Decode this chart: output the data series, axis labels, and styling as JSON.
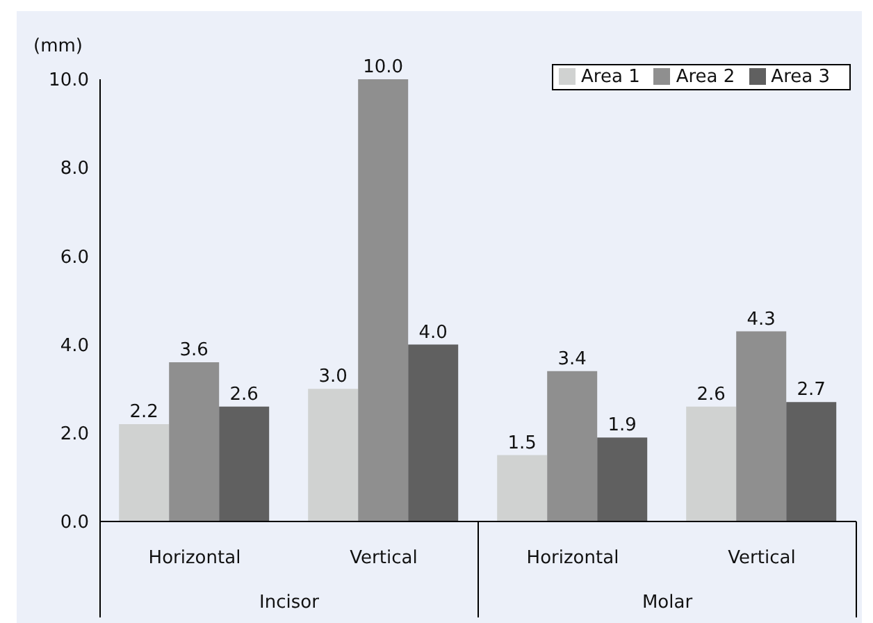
{
  "chart_data": {
    "type": "bar",
    "ylabel": "(mm)",
    "categories": [
      "Horizontal",
      "Vertical",
      "Horizontal",
      "Vertical"
    ],
    "annotations": [
      "Incisor",
      "Molar"
    ],
    "series": [
      {
        "name": "Area 1",
        "color": "#d0d2d1",
        "values": [
          2.2,
          3.0,
          1.5,
          2.6
        ],
        "value_labels": [
          "2.2",
          "3.0",
          "1.5",
          "2.6"
        ]
      },
      {
        "name": "Area 2",
        "color": "#8f8f8f",
        "values": [
          3.6,
          10.0,
          3.4,
          4.3
        ],
        "value_labels": [
          "3.6",
          "10.0",
          "3.4",
          "4.3"
        ]
      },
      {
        "name": "Area 3",
        "color": "#606060",
        "values": [
          2.6,
          4.0,
          1.9,
          2.7
        ],
        "value_labels": [
          "2.6",
          "4.0",
          "1.9",
          "2.7"
        ]
      }
    ],
    "ylim": [
      0,
      10
    ],
    "yticks": [
      {
        "value": 0,
        "label": "0.0"
      },
      {
        "value": 2,
        "label": "2.0"
      },
      {
        "value": 4,
        "label": "4.0"
      },
      {
        "value": 6,
        "label": "6.0"
      },
      {
        "value": 8,
        "label": "8.0"
      },
      {
        "value": 10,
        "label": "10.0"
      }
    ],
    "grid": false,
    "legend": "top right"
  }
}
